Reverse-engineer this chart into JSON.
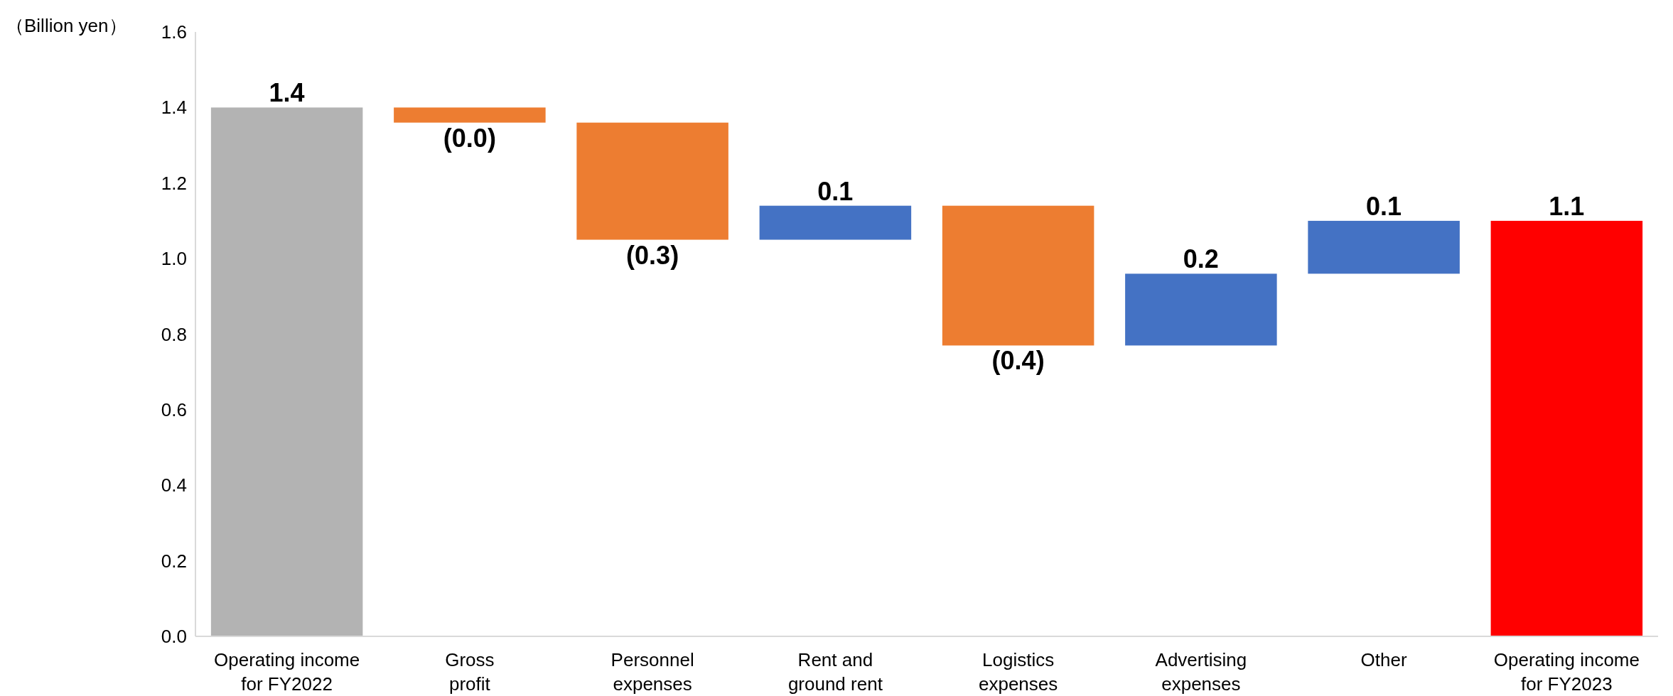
{
  "chart_data": {
    "type": "bar",
    "ylabel": "（Billion yen）",
    "categories": [
      "Operating income\nfor FY2022",
      "Gross\nprofit",
      "Personnel\nexpenses",
      "Rent and\nground rent",
      "Logistics\nexpenses",
      "Advertising\nexpenses",
      "Other",
      "Operating income\nfor FY2023"
    ],
    "values": [
      1.4,
      -0.04,
      -0.31,
      0.09,
      -0.37,
      0.19,
      0.14,
      1.1
    ],
    "base": [
      0,
      1.4,
      1.36,
      1.05,
      1.14,
      0.77,
      0.96,
      0
    ],
    "colors": [
      "#b3b3b3",
      "#ed7d31",
      "#ed7d31",
      "#4472c4",
      "#ed7d31",
      "#4472c4",
      "#4472c4",
      "#ff0000"
    ],
    "value_labels": [
      "1.4",
      "(0.0)",
      "(0.3)",
      "0.1",
      "(0.4)",
      "0.2",
      "0.1",
      "1.1"
    ],
    "ylim": [
      0,
      1.6
    ],
    "yticks": [
      {
        "value": 0,
        "label": "0.0"
      },
      {
        "value": 0.2,
        "label": "0.2"
      },
      {
        "value": 0.4,
        "label": "0.4"
      },
      {
        "value": 0.6,
        "label": "0.6"
      },
      {
        "value": 0.8,
        "label": "0.8"
      },
      {
        "value": 1.0,
        "label": "1.0"
      },
      {
        "value": 1.2,
        "label": "1.2"
      },
      {
        "value": 1.4,
        "label": "1.4"
      },
      {
        "value": 1.6,
        "label": "1.6"
      }
    ],
    "grid": false
  }
}
